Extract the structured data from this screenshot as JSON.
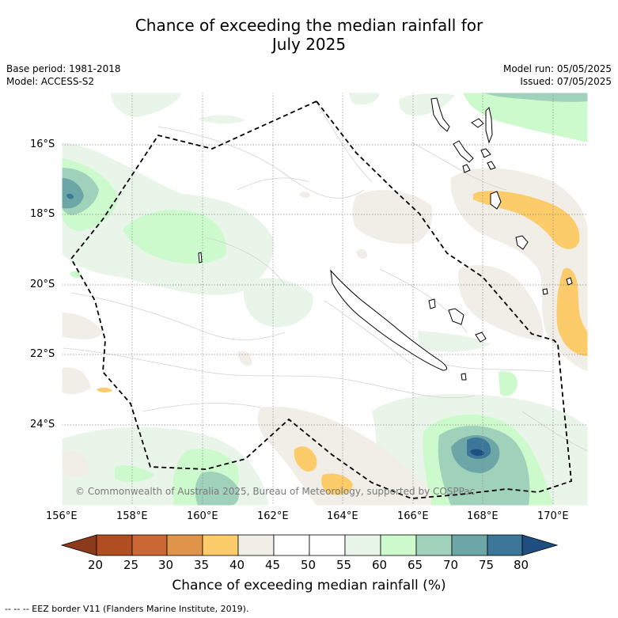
{
  "title": {
    "line1": "Chance of exceeding the median rainfall for",
    "line2": "July 2025"
  },
  "meta": {
    "base_period": "Base period: 1981-2018",
    "model": "Model: ACCESS-S2",
    "model_run": "Model run: 05/05/2025",
    "issued": "Issued: 07/05/2025"
  },
  "map": {
    "lat_labels": [
      "16°S",
      "18°S",
      "20°S",
      "22°S",
      "24°S"
    ],
    "lon_labels": [
      "156°E",
      "158°E",
      "160°E",
      "162°E",
      "164°E",
      "166°E",
      "168°E",
      "170°E"
    ],
    "copyright": "© Commonwealth of Australia 2025, Bureau of Meteorology, supported by COSPPac"
  },
  "colorbar": {
    "title": "Chance of exceeding median rainfall (%)",
    "ticks": [
      "20",
      "25",
      "30",
      "35",
      "40",
      "45",
      "50",
      "55",
      "60",
      "65",
      "70",
      "75",
      "80"
    ],
    "colors": [
      "#8b3a1c",
      "#b04d23",
      "#cb6734",
      "#e0944a",
      "#fdcc6a",
      "#f1ede7",
      "#ffffff",
      "#ffffff",
      "#eaf5ea",
      "#ccfacc",
      "#a0d1bb",
      "#6da6a6",
      "#3c7799",
      "#1f4f80"
    ]
  },
  "footer": "-- -- -- EEZ border V11 (Flanders Marine Institute, 2019)."
}
